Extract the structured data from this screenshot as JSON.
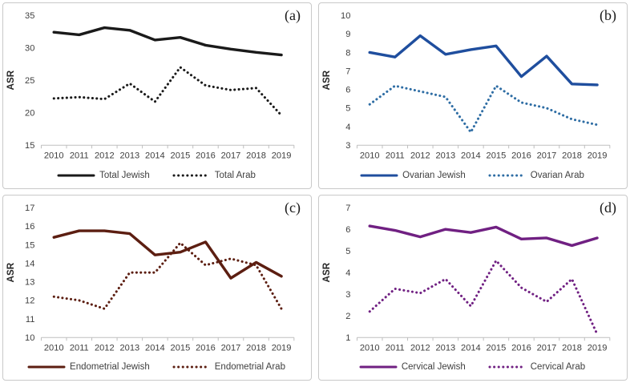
{
  "figure": {
    "description": "Age-standardized rate (ASR) trends 2010-2019, Jewish vs Arab populations, four cancer sites",
    "axis_color": "#bfbfbf",
    "tick_text_color": "#3f3f3f"
  },
  "chart_data": [
    {
      "type": "line",
      "panel_label": "(a)",
      "ylabel": "ASR",
      "x": [
        "2010",
        "2011",
        "2012",
        "2013",
        "2014",
        "2015",
        "2016",
        "2017",
        "2018",
        "2019"
      ],
      "ylim": [
        15,
        35
      ],
      "yticks": [
        15,
        20,
        25,
        30,
        35
      ],
      "grid": false,
      "legend_position": "bottom",
      "series": [
        {
          "name": "Total Jewish",
          "style": "solid",
          "color": "#1a1a1a",
          "values": [
            32.4,
            32.0,
            33.1,
            32.7,
            31.2,
            31.6,
            30.4,
            29.8,
            29.3,
            28.9
          ]
        },
        {
          "name": "Total Arab",
          "style": "dotted",
          "color": "#1a1a1a",
          "values": [
            22.2,
            22.4,
            22.1,
            24.5,
            21.7,
            27.0,
            24.2,
            23.5,
            23.8,
            19.6
          ]
        }
      ]
    },
    {
      "type": "line",
      "panel_label": "(b)",
      "ylabel": "ASR",
      "x": [
        "2010",
        "2011",
        "2012",
        "2013",
        "2014",
        "2015",
        "2016",
        "2017",
        "2018",
        "2019"
      ],
      "ylim": [
        3,
        10
      ],
      "yticks": [
        3,
        4,
        5,
        6,
        7,
        8,
        9,
        10
      ],
      "grid": false,
      "legend_position": "bottom",
      "series": [
        {
          "name": "Ovarian Jewish",
          "style": "solid",
          "color": "#1f4e9e",
          "values": [
            8.0,
            7.75,
            8.9,
            7.9,
            8.15,
            8.35,
            6.7,
            7.8,
            6.3,
            6.25
          ]
        },
        {
          "name": "Ovarian Arab",
          "style": "dotted",
          "color": "#2e6da4",
          "values": [
            5.2,
            6.2,
            5.9,
            5.6,
            3.7,
            6.2,
            5.3,
            5.0,
            4.4,
            4.1
          ]
        }
      ]
    },
    {
      "type": "line",
      "panel_label": "(c)",
      "ylabel": "ASR",
      "x": [
        "2010",
        "2011",
        "2012",
        "2013",
        "2014",
        "2015",
        "2016",
        "2017",
        "2018",
        "2019"
      ],
      "ylim": [
        10,
        17
      ],
      "yticks": [
        10,
        11,
        12,
        13,
        14,
        15,
        16,
        17
      ],
      "grid": false,
      "legend_position": "bottom",
      "series": [
        {
          "name": "Endometrial Jewish",
          "style": "solid",
          "color": "#5c1e11",
          "values": [
            15.4,
            15.75,
            15.75,
            15.6,
            14.45,
            14.6,
            15.15,
            13.2,
            14.05,
            13.3
          ]
        },
        {
          "name": "Endometrial Arab",
          "style": "dotted",
          "color": "#5c1e11",
          "values": [
            12.2,
            12.0,
            11.55,
            13.5,
            13.5,
            15.1,
            13.9,
            14.25,
            13.9,
            11.55
          ]
        }
      ]
    },
    {
      "type": "line",
      "panel_label": "(d)",
      "ylabel": "ASR",
      "x": [
        "2010",
        "2011",
        "2012",
        "2013",
        "2014",
        "2015",
        "2016",
        "2017",
        "2018",
        "2019"
      ],
      "ylim": [
        1,
        7
      ],
      "yticks": [
        1,
        2,
        3,
        4,
        5,
        6,
        7
      ],
      "grid": false,
      "legend_position": "bottom",
      "series": [
        {
          "name": "Cervical Jewish",
          "style": "solid",
          "color": "#702082",
          "values": [
            6.15,
            5.95,
            5.65,
            6.0,
            5.85,
            6.1,
            5.55,
            5.6,
            5.25,
            5.6
          ]
        },
        {
          "name": "Cervical Arab",
          "style": "dotted",
          "color": "#702082",
          "values": [
            2.2,
            3.25,
            3.05,
            3.7,
            2.45,
            4.55,
            3.3,
            2.65,
            3.7,
            1.15
          ]
        }
      ]
    }
  ]
}
